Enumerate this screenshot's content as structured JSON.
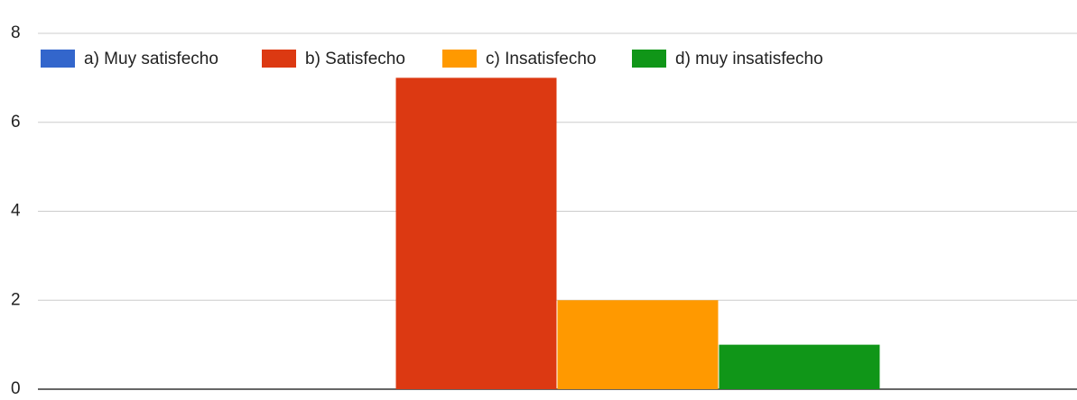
{
  "chart_data": {
    "type": "bar",
    "categories": [
      null
    ],
    "series": [
      {
        "name": "a) Muy satisfecho",
        "color": "#3366cc",
        "values": [
          0
        ]
      },
      {
        "name": "b) Satisfecho",
        "color": "#dc3912",
        "values": [
          7
        ]
      },
      {
        "name": "c) Insatisfecho",
        "color": "#ff9900",
        "values": [
          2
        ]
      },
      {
        "name": "d) muy insatisfecho",
        "color": "#109618",
        "values": [
          1
        ]
      }
    ],
    "ylim": [
      0,
      8
    ],
    "yticks": [
      0,
      2,
      4,
      6,
      8
    ],
    "grid": true,
    "legend": "top"
  }
}
